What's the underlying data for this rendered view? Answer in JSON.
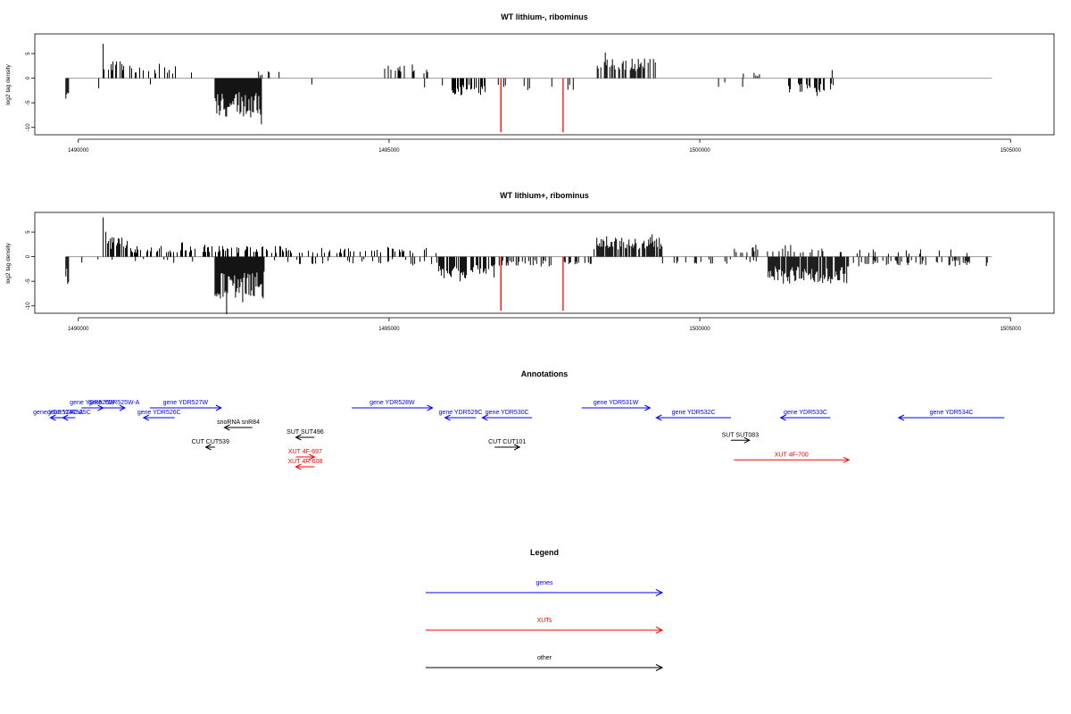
{
  "chart_data": [
    {
      "type": "bar",
      "title": "WT lithium-, ribominus",
      "xlabel": "",
      "ylabel": "log2 tag density",
      "xlim": [
        1489300,
        1505700
      ],
      "ylim": [
        -11.5,
        9
      ],
      "xticks": [
        1490000,
        1495000,
        1500000,
        1505000
      ],
      "yticks": [
        -10,
        -5,
        0,
        5
      ],
      "ytick_labels": [
        "-10",
        "-5",
        "0",
        "5"
      ],
      "baseline_extent": [
        1489800,
        1504700
      ],
      "series": [
        {
          "strand": "+",
          "color": "#000000",
          "segments": [
            {
              "x0": 1490400,
              "x1": 1490800,
              "amp": 3.6,
              "density": 0.35,
              "peak": 7
            },
            {
              "x0": 1490800,
              "x1": 1491850,
              "amp": 2.6,
              "density": 0.22
            },
            {
              "x0": 1492900,
              "x1": 1493300,
              "amp": 1.4,
              "density": 0.12
            },
            {
              "x0": 1494400,
              "x1": 1494600,
              "amp": 1.5,
              "density": 0.1
            },
            {
              "x0": 1494900,
              "x1": 1495700,
              "amp": 2.6,
              "density": 0.18
            },
            {
              "x0": 1498350,
              "x1": 1499300,
              "amp": 4.0,
              "density": 0.6
            },
            {
              "x0": 1500600,
              "x1": 1501000,
              "amp": 1.3,
              "density": 0.08
            },
            {
              "x0": 1501800,
              "x1": 1502300,
              "amp": 2.0,
              "density": 0.06
            }
          ]
        },
        {
          "strand": "-",
          "color": "#000000",
          "segments": [
            {
              "x0": 1489800,
              "x1": 1489850,
              "amp": 6.0,
              "density": 1.0
            },
            {
              "x0": 1490300,
              "x1": 1490400,
              "amp": 2.5,
              "density": 0.05
            },
            {
              "x0": 1490600,
              "x1": 1491200,
              "amp": 1.5,
              "density": 0.05
            },
            {
              "x0": 1492200,
              "x1": 1492950,
              "amp": 8.0,
              "density": 1.0
            },
            {
              "x0": 1493700,
              "x1": 1493800,
              "amp": 2.0,
              "density": 0.02
            },
            {
              "x0": 1494500,
              "x1": 1494600,
              "amp": 2.0,
              "density": 0.02
            },
            {
              "x0": 1495500,
              "x1": 1496000,
              "amp": 2.0,
              "density": 0.1
            },
            {
              "x0": 1496000,
              "x1": 1496600,
              "amp": 3.5,
              "density": 0.5
            },
            {
              "x0": 1496700,
              "x1": 1498000,
              "amp": 2.5,
              "density": 0.12
            },
            {
              "x0": 1500000,
              "x1": 1500800,
              "amp": 1.8,
              "density": 0.04
            },
            {
              "x0": 1501400,
              "x1": 1502200,
              "amp": 3.0,
              "density": 0.5
            },
            {
              "x0": 1502800,
              "x1": 1502900,
              "amp": 3.5,
              "density": 0.02
            }
          ]
        },
        {
          "strand": "-",
          "color": "#ff0000",
          "spikes": [
            {
              "x": 1496800,
              "y": -11
            },
            {
              "x": 1497800,
              "y": -11
            }
          ]
        }
      ]
    },
    {
      "type": "bar",
      "title": "WT lithium+, ribominus",
      "xlabel": "",
      "ylabel": "log2 tag density",
      "xlim": [
        1489300,
        1505700
      ],
      "ylim": [
        -11.5,
        9
      ],
      "xticks": [
        1490000,
        1495000,
        1500000,
        1505000
      ],
      "yticks": [
        -10,
        -5,
        0,
        5
      ],
      "ytick_labels": [
        "-10",
        "-5",
        "0",
        "5"
      ],
      "baseline_extent": [
        1489800,
        1504700
      ],
      "series": [
        {
          "strand": "+",
          "color": "#000000",
          "segments": [
            {
              "x0": 1490400,
              "x1": 1490800,
              "amp": 4.0,
              "density": 0.7,
              "peak": 8
            },
            {
              "x0": 1490800,
              "x1": 1493300,
              "amp": 2.2,
              "density": 0.4
            },
            {
              "x0": 1493300,
              "x1": 1495800,
              "amp": 1.8,
              "density": 0.3
            },
            {
              "x0": 1498300,
              "x1": 1499400,
              "amp": 4.0,
              "density": 0.8
            },
            {
              "x0": 1500500,
              "x1": 1502000,
              "amp": 1.8,
              "density": 0.2
            },
            {
              "x0": 1502000,
              "x1": 1504700,
              "amp": 1.5,
              "density": 0.1
            }
          ]
        },
        {
          "strand": "-",
          "color": "#000000",
          "segments": [
            {
              "x0": 1489800,
              "x1": 1489850,
              "amp": 6.0,
              "density": 1.0
            },
            {
              "x0": 1490000,
              "x1": 1492100,
              "amp": 1.2,
              "density": 0.08
            },
            {
              "x0": 1492200,
              "x1": 1493000,
              "amp": 8.5,
              "density": 1.0
            },
            {
              "x0": 1493000,
              "x1": 1495800,
              "amp": 1.5,
              "density": 0.15
            },
            {
              "x0": 1495800,
              "x1": 1496700,
              "amp": 4.5,
              "density": 0.8
            },
            {
              "x0": 1496700,
              "x1": 1498300,
              "amp": 2.0,
              "density": 0.3
            },
            {
              "x0": 1499400,
              "x1": 1501100,
              "amp": 1.5,
              "density": 0.15
            },
            {
              "x0": 1501100,
              "x1": 1502400,
              "amp": 5.5,
              "density": 0.9
            },
            {
              "x0": 1502400,
              "x1": 1504700,
              "amp": 2.0,
              "density": 0.3
            }
          ]
        },
        {
          "strand": "-",
          "color": "#ff0000",
          "spikes": [
            {
              "x": 1496800,
              "y": -11
            },
            {
              "x": 1497800,
              "y": -11
            }
          ]
        }
      ]
    }
  ],
  "annotations": {
    "title": "Annotations",
    "colors": {
      "gene": "#0000ff",
      "xut": "#ff0000",
      "other": "#000000"
    },
    "features": [
      {
        "label": "gene YDR524C-A",
        "kind": "gene",
        "x0": 1489550,
        "x1": 1489800,
        "row": 2,
        "dir": "left"
      },
      {
        "label": "gene YDR525C",
        "kind": "gene",
        "x0": 1489750,
        "x1": 1489950,
        "row": 2,
        "dir": "left"
      },
      {
        "label": "gene YDR525W",
        "kind": "gene",
        "x0": 1490050,
        "x1": 1490400,
        "row": 1,
        "dir": "right"
      },
      {
        "label": "gene YDR525W-A",
        "kind": "gene",
        "x0": 1490400,
        "x1": 1490750,
        "row": 1,
        "dir": "right"
      },
      {
        "label": "gene YDR526C",
        "kind": "gene",
        "x0": 1491050,
        "x1": 1491550,
        "row": 2,
        "dir": "left"
      },
      {
        "label": "gene YDR527W",
        "kind": "gene",
        "x0": 1491150,
        "x1": 1492300,
        "row": 1,
        "dir": "right"
      },
      {
        "label": "snoRNA snR84",
        "kind": "other",
        "x0": 1492350,
        "x1": 1492800,
        "row": 3,
        "dir": "left"
      },
      {
        "label": "SUT SUT496",
        "kind": "other",
        "x0": 1493500,
        "x1": 1493800,
        "row": 4,
        "dir": "left"
      },
      {
        "label": "CUT CUT539",
        "kind": "other",
        "x0": 1492050,
        "x1": 1492200,
        "row": 5,
        "dir": "left"
      },
      {
        "label": "XUT 4F-697",
        "kind": "xut",
        "x0": 1493500,
        "x1": 1493800,
        "row": 6,
        "dir": "right"
      },
      {
        "label": "XUT 4R-608",
        "kind": "xut",
        "x0": 1493500,
        "x1": 1493800,
        "row": 7,
        "dir": "left"
      },
      {
        "label": "gene YDR528W",
        "kind": "gene",
        "x0": 1494400,
        "x1": 1495700,
        "row": 1,
        "dir": "right"
      },
      {
        "label": "gene YDR529C",
        "kind": "gene",
        "x0": 1495900,
        "x1": 1496400,
        "row": 2,
        "dir": "left"
      },
      {
        "label": "gene YDR530C",
        "kind": "gene",
        "x0": 1496500,
        "x1": 1497300,
        "row": 2,
        "dir": "left"
      },
      {
        "label": "CUT CUT101",
        "kind": "other",
        "x0": 1496700,
        "x1": 1497100,
        "row": 5,
        "dir": "right"
      },
      {
        "label": "gene YDR531W",
        "kind": "gene",
        "x0": 1498100,
        "x1": 1499200,
        "row": 1,
        "dir": "right"
      },
      {
        "label": "gene YDR532C",
        "kind": "gene",
        "x0": 1499300,
        "x1": 1500500,
        "row": 2,
        "dir": "left"
      },
      {
        "label": "SUT SUT083",
        "kind": "other",
        "x0": 1500500,
        "x1": 1500800,
        "row": 4.3,
        "dir": "right"
      },
      {
        "label": "XUT 4F-700",
        "kind": "xut",
        "x0": 1500550,
        "x1": 1502400,
        "row": 6.3,
        "dir": "right"
      },
      {
        "label": "gene YDR533C",
        "kind": "gene",
        "x0": 1501300,
        "x1": 1502100,
        "row": 2,
        "dir": "left"
      },
      {
        "label": "gene YDR534C",
        "kind": "gene",
        "x0": 1503200,
        "x1": 1504900,
        "row": 2,
        "dir": "left"
      }
    ]
  },
  "legend": {
    "title": "Legend",
    "items": [
      {
        "label": "genes",
        "color": "#0000ff"
      },
      {
        "label": "XUTs",
        "color": "#ff0000"
      },
      {
        "label": "other",
        "color": "#000000"
      }
    ]
  }
}
